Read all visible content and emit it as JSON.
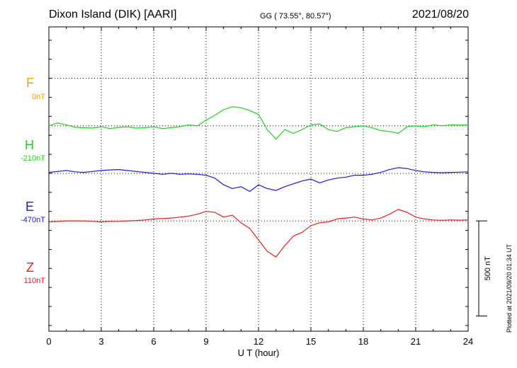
{
  "header": {
    "station": "Dixon Island (DIK)  [AARI]",
    "coords": "GG ( 73.55°,  80.57°)",
    "date": "2021/08/20"
  },
  "components": [
    {
      "letter": "F",
      "baseline": "0nT",
      "color": "#f4a300"
    },
    {
      "letter": "H",
      "baseline": "-210nT",
      "color": "#22cc22"
    },
    {
      "letter": "E",
      "baseline": "-470nT",
      "color": "#1a1acc"
    },
    {
      "letter": "Z",
      "baseline": "110nT",
      "color": "#e02020"
    }
  ],
  "scale_label": "500 nT",
  "plotted_note": "Plotted at 2021/09/20 01:34 UT",
  "chart_data": {
    "type": "line",
    "xlabel": "U T (hour)",
    "xlim": [
      0,
      24
    ],
    "x_ticks": [
      0,
      3,
      6,
      9,
      12,
      15,
      18,
      21,
      24
    ],
    "ylim": [
      -830,
      770
    ],
    "y_unit": "nT",
    "grid": true,
    "offsets": {
      "F": 500,
      "H": 250,
      "E": 0,
      "Z": -250
    },
    "series": [
      {
        "name": "H",
        "color": "#22cc22",
        "x": [
          0,
          0.5,
          1,
          1.5,
          2,
          2.5,
          3,
          3.5,
          4,
          4.5,
          5,
          5.5,
          6,
          6.5,
          7,
          7.5,
          8,
          8.5,
          9,
          9.5,
          10,
          10.5,
          11,
          11.5,
          12,
          12.5,
          13,
          13.5,
          14,
          14.5,
          15,
          15.5,
          16,
          16.5,
          17,
          17.5,
          18,
          18.5,
          19,
          19.5,
          20,
          20.5,
          21,
          21.5,
          22,
          22.5,
          23,
          23.5,
          24
        ],
        "y": [
          0,
          15,
          5,
          -8,
          -10,
          -12,
          -5,
          -15,
          -8,
          -5,
          -12,
          -10,
          -5,
          -15,
          -10,
          -5,
          5,
          0,
          30,
          55,
          85,
          100,
          95,
          80,
          60,
          -20,
          -70,
          -20,
          -40,
          -20,
          5,
          10,
          -20,
          -30,
          -10,
          -5,
          0,
          -10,
          -25,
          -30,
          -40,
          -5,
          0,
          -5,
          5,
          0,
          5,
          3,
          5
        ]
      },
      {
        "name": "E",
        "color": "#1a1acc",
        "x": [
          0,
          0.5,
          1,
          1.5,
          2,
          2.5,
          3,
          3.5,
          4,
          4.5,
          5,
          5.5,
          6,
          6.5,
          7,
          7.5,
          8,
          8.5,
          9,
          9.5,
          10,
          10.5,
          11,
          11.5,
          12,
          12.5,
          13,
          13.5,
          14,
          14.5,
          15,
          15.5,
          16,
          16.5,
          17,
          17.5,
          18,
          18.5,
          19,
          19.5,
          20,
          20.5,
          21,
          21.5,
          22,
          22.5,
          23,
          23.5,
          24
        ],
        "y": [
          5,
          10,
          15,
          8,
          5,
          10,
          15,
          18,
          20,
          15,
          10,
          5,
          0,
          -5,
          0,
          -5,
          -3,
          -5,
          -10,
          -25,
          -60,
          -80,
          -70,
          -95,
          -60,
          -80,
          -90,
          -70,
          -55,
          -40,
          -30,
          -50,
          -35,
          -25,
          -20,
          -10,
          -10,
          -5,
          5,
          20,
          30,
          25,
          15,
          8,
          5,
          3,
          5,
          6,
          8
        ]
      },
      {
        "name": "Z",
        "color": "#e02020",
        "x": [
          0,
          0.5,
          1,
          1.5,
          2,
          2.5,
          3,
          3.5,
          4,
          4.5,
          5,
          5.5,
          6,
          6.5,
          7,
          7.5,
          8,
          8.5,
          9,
          9.5,
          10,
          10.5,
          11,
          11.5,
          12,
          12.5,
          13,
          13.5,
          14,
          14.5,
          15,
          15.5,
          16,
          16.5,
          17,
          17.5,
          18,
          18.5,
          19,
          19.5,
          20,
          20.5,
          21,
          21.5,
          22,
          22.5,
          23,
          23.5,
          24
        ],
        "y": [
          -5,
          -3,
          0,
          0,
          0,
          -2,
          -5,
          -3,
          -2,
          0,
          2,
          5,
          10,
          12,
          15,
          20,
          25,
          35,
          50,
          45,
          20,
          30,
          -10,
          -40,
          -100,
          -160,
          -190,
          -130,
          -80,
          -60,
          -25,
          -10,
          -5,
          10,
          15,
          20,
          10,
          5,
          15,
          35,
          60,
          45,
          20,
          10,
          5,
          3,
          5,
          4,
          5
        ]
      }
    ]
  }
}
